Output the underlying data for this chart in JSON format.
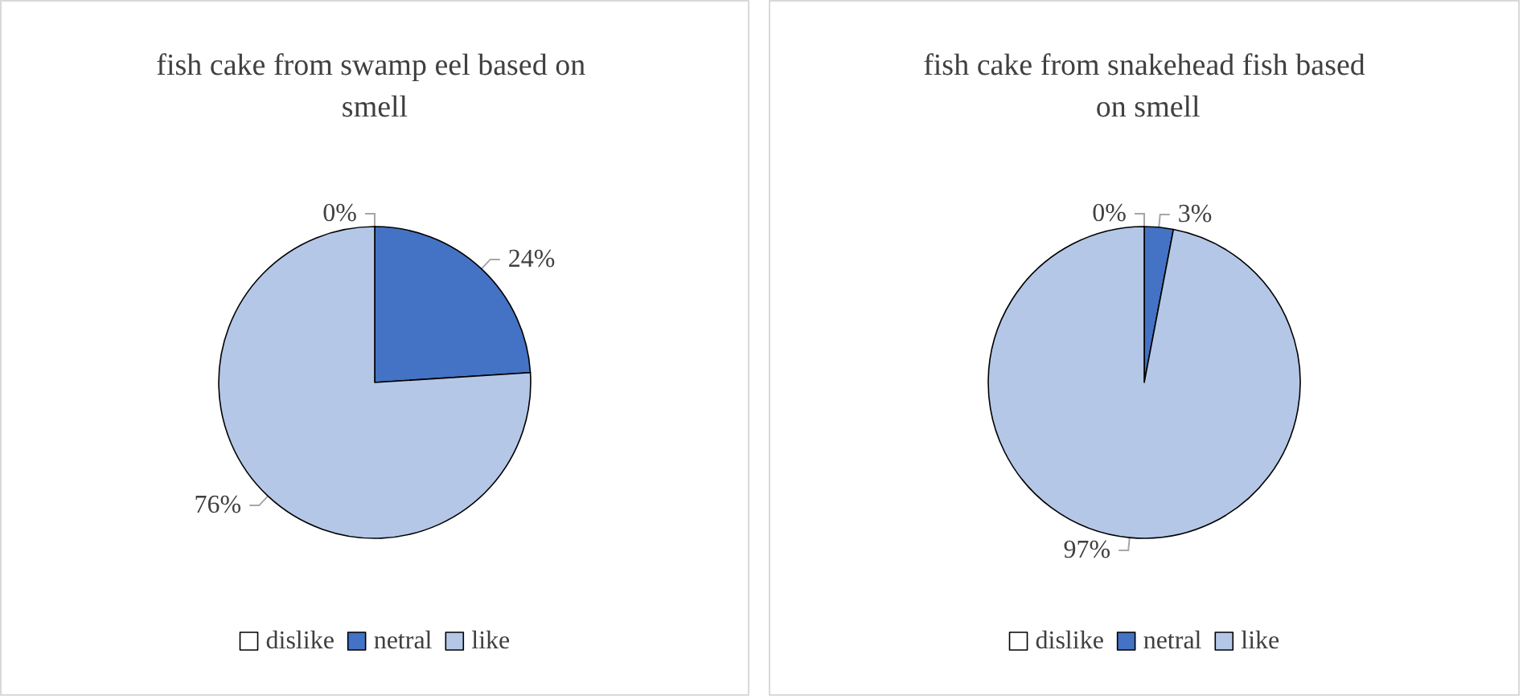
{
  "chart_data": [
    {
      "type": "pie",
      "title": "fish cake from swamp eel based on smell",
      "categories": [
        "dislike",
        "netral",
        "like"
      ],
      "values": [
        0,
        24,
        76
      ],
      "value_labels": [
        "0%",
        "24%",
        "76%"
      ],
      "colors": [
        "#ffffff",
        "#4472c4",
        "#b4c7e7"
      ],
      "legend": "bottom"
    },
    {
      "type": "pie",
      "title": "fish cake from snakehead fish based on smell",
      "categories": [
        "dislike",
        "netral",
        "like"
      ],
      "values": [
        0,
        3,
        97
      ],
      "value_labels": [
        "0%",
        "3%",
        "97%"
      ],
      "colors": [
        "#ffffff",
        "#4472c4",
        "#b4c7e7"
      ],
      "legend": "bottom"
    }
  ]
}
